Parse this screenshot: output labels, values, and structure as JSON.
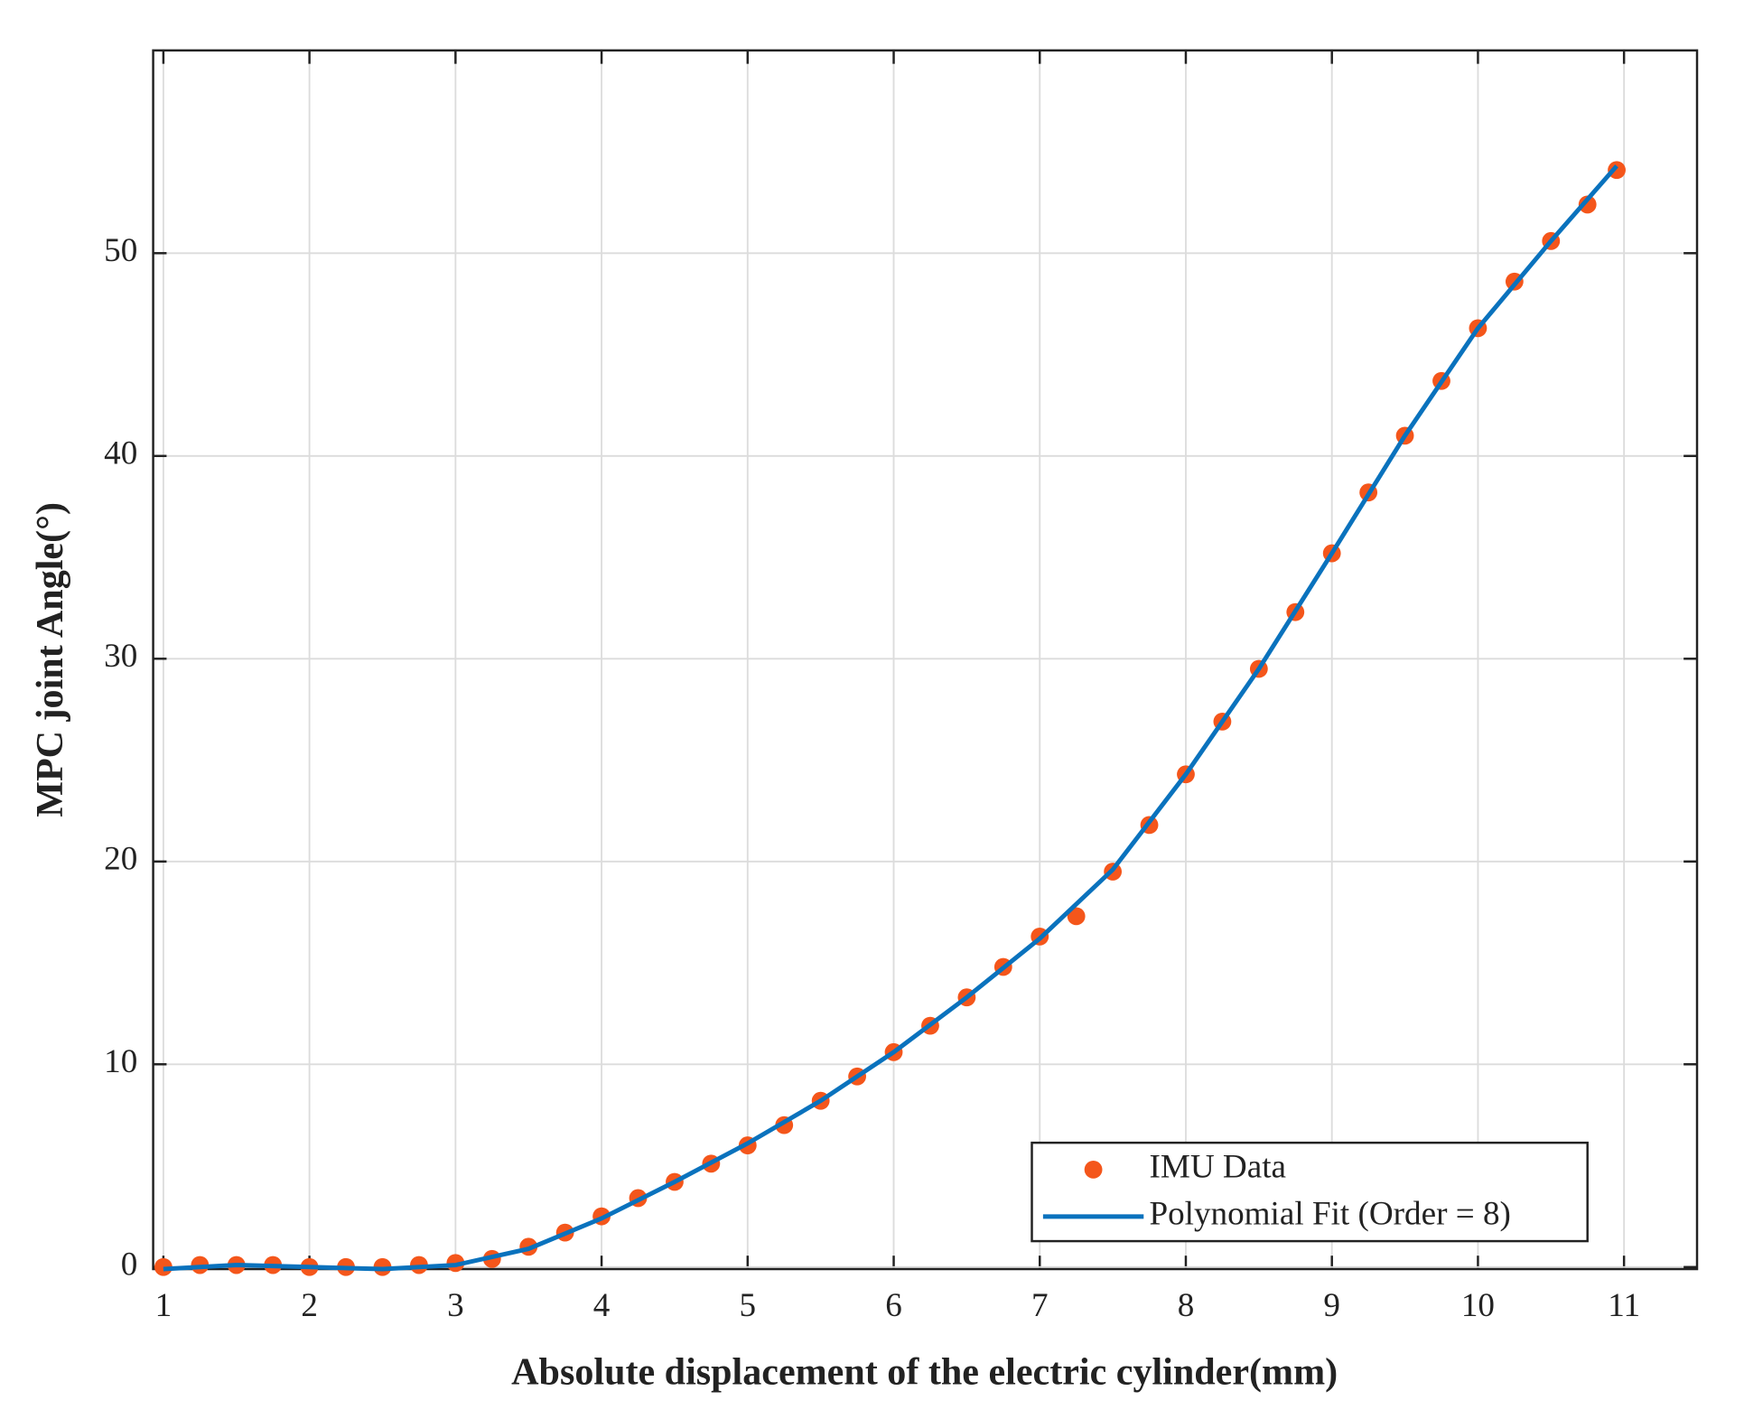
{
  "chart_data": {
    "type": "scatter",
    "xlabel": "Absolute displacement of the electric cylinder(mm)",
    "ylabel": "MPC joint Angle(°)",
    "xlim": [
      0.93,
      11.5
    ],
    "ylim": [
      -0.1,
      60
    ],
    "xticks": [
      1,
      2,
      3,
      4,
      5,
      6,
      7,
      8,
      9,
      10,
      11
    ],
    "yticks": [
      0,
      10,
      20,
      30,
      40,
      50
    ],
    "grid": true,
    "legend": "lower right",
    "series": [
      {
        "name": "IMU Data",
        "type": "scatter",
        "color": "#f4561b",
        "x": [
          1,
          1.25,
          1.5,
          1.75,
          2,
          2.25,
          2.5,
          2.75,
          3,
          3.25,
          3.5,
          3.75,
          4,
          4.25,
          4.5,
          4.75,
          5,
          5.25,
          5.5,
          5.75,
          6,
          6.25,
          6.5,
          6.75,
          7,
          7.25,
          7.5,
          7.75,
          8,
          8.25,
          8.5,
          8.75,
          9,
          9.25,
          9.5,
          9.75,
          10,
          10.25,
          10.5,
          10.75,
          10.95
        ],
        "values": [
          0,
          0.1,
          0.1,
          0.1,
          0,
          0,
          0,
          0.1,
          0.2,
          0.4,
          1.0,
          1.7,
          2.5,
          3.4,
          4.2,
          5.1,
          6.0,
          7.0,
          8.2,
          9.4,
          10.6,
          11.9,
          13.3,
          14.8,
          16.3,
          17.3,
          19.5,
          21.8,
          24.3,
          26.9,
          29.5,
          32.3,
          35.2,
          38.2,
          41.0,
          43.7,
          46.3,
          48.6,
          50.6,
          52.4,
          54.1
        ]
      },
      {
        "name": "Polynomial Fit (Order = 8)",
        "type": "line",
        "color": "#0a72bd",
        "x": [
          1,
          1.5,
          2,
          2.5,
          3,
          3.5,
          4,
          4.5,
          5,
          5.5,
          6,
          6.5,
          7,
          7.5,
          8,
          8.5,
          9,
          9.5,
          10,
          10.5,
          10.95
        ],
        "values": [
          -0.1,
          0.1,
          0,
          -0.1,
          0.1,
          0.9,
          2.4,
          4.2,
          6.1,
          8.2,
          10.6,
          13.3,
          16.2,
          19.6,
          24.3,
          29.5,
          35.2,
          41.0,
          46.3,
          50.6,
          54.3
        ]
      }
    ]
  }
}
